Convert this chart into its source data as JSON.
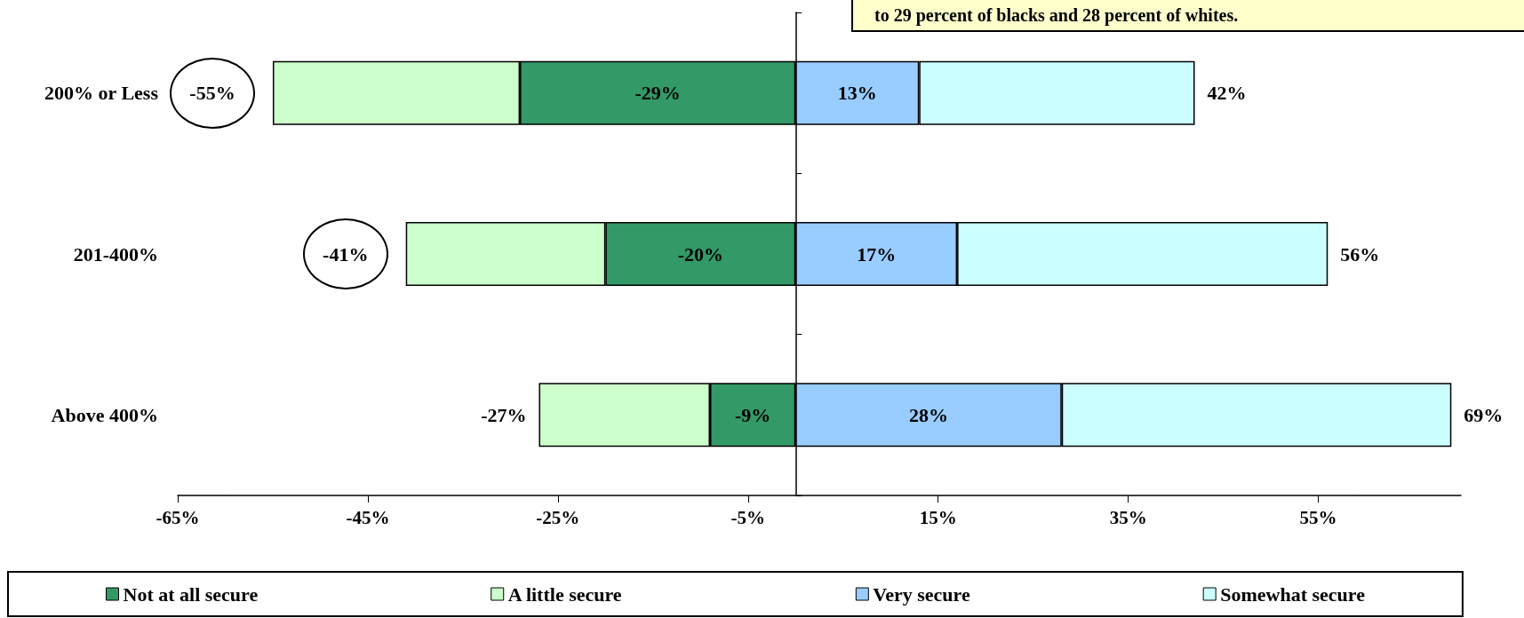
{
  "chart_data": {
    "type": "bar",
    "orientation": "horizontal",
    "stacked": true,
    "categories": [
      "200% or Less",
      "201-400%",
      "Above 400%"
    ],
    "series": [
      {
        "name": "Not at all secure",
        "color": "#339966",
        "values": [
          -29,
          -20,
          -9
        ],
        "value_labels": [
          "-29%",
          "-20%",
          "-9%"
        ]
      },
      {
        "name": "A little secure",
        "color": "#ccffcc",
        "values": [
          -26,
          -21,
          -18
        ]
      },
      {
        "name": "Very secure",
        "color": "#99ccff",
        "values": [
          13,
          17,
          28
        ],
        "value_labels": [
          "13%",
          "17%",
          "28%"
        ]
      },
      {
        "name": "Somewhat secure",
        "color": "#ccffff",
        "values": [
          29,
          39,
          41
        ]
      }
    ],
    "xlim": [
      -65,
      70
    ],
    "xticks": [
      {
        "value": -65,
        "label": "-65%"
      },
      {
        "value": -45,
        "label": "-45%"
      },
      {
        "value": -25,
        "label": "-25%"
      },
      {
        "value": -5,
        "label": "-5%"
      },
      {
        "value": 15,
        "label": "15%"
      },
      {
        "value": 35,
        "label": "35%"
      },
      {
        "value": 55,
        "label": "55%"
      }
    ],
    "grid": false,
    "legend": "bottom",
    "annotations": [
      {
        "text": "-55%",
        "x": -55,
        "y": "200% or Less"
      },
      {
        "text": "-41%",
        "x": -41,
        "y": "201-400%"
      },
      {
        "text": "-27%",
        "x": -27,
        "y": "Above 400%"
      },
      {
        "text": "42%",
        "x": 42,
        "y": "200% or Less"
      },
      {
        "text": "56%",
        "x": 56,
        "y": "201-400%"
      },
      {
        "text": "69%",
        "x": 69,
        "y": "Above 400%"
      },
      "to 29 percent of blacks and 28 percent of whites."
    ]
  }
}
